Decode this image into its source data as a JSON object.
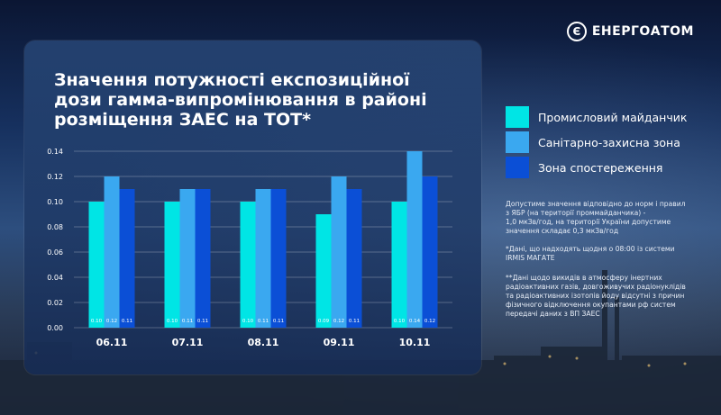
{
  "brand": {
    "logo_letter": "Є",
    "name": "ЕНЕРГОАТОМ"
  },
  "title_lines": [
    "Значення потужності експозиційної",
    "дози гамма-випромінювання в районі",
    "розміщення ЗАЕС на ТОТ*"
  ],
  "legend": [
    {
      "label": "Промисловий майданчик",
      "color": "#00e5e5"
    },
    {
      "label": "Санітарно-захисна зона",
      "color": "#3aa8f0"
    },
    {
      "label": "Зона спостереження",
      "color": "#0b4fd6"
    }
  ],
  "notes": {
    "n1": [
      "Допустиме значення відповідно до норм і правил",
      "з ЯБР (на території проммайданчика) -",
      "1,0 мкЗв/год, на території України допустиме",
      "значення складає 0,3 мкЗв/год"
    ],
    "n2": [
      "*Дані, що надходять щодня о 08:00 із системи",
      "IRMIS МАГАТЕ"
    ],
    "n3": [
      "**Дані щодо викидів в атмосферу інертних",
      "радіоактивних газів, довгоживучих радіонуклідів",
      "та радіоактивних ізотопів йоду відсутні з причин",
      "фізичного відключення окупантами рф систем",
      "передачі даних з ВП ЗАЕС"
    ]
  },
  "chart_data": {
    "type": "bar",
    "categories": [
      "06.11",
      "07.11",
      "08.11",
      "09.11",
      "10.11"
    ],
    "series": [
      {
        "name": "Промисловий майданчик",
        "values": [
          0.1,
          0.1,
          0.1,
          0.09,
          0.1
        ],
        "labels": [
          "0.10",
          "0.10",
          "0.10",
          "0.09",
          "0.10"
        ],
        "color": "#00e5e5"
      },
      {
        "name": "Санітарно-захисна зона",
        "values": [
          0.12,
          0.11,
          0.11,
          0.12,
          0.14
        ],
        "labels": [
          "0.12",
          "0.11",
          "0.11",
          "0.12",
          "0.14"
        ],
        "color": "#3aa8f0"
      },
      {
        "name": "Зона спостереження",
        "values": [
          0.11,
          0.11,
          0.11,
          0.11,
          0.12
        ],
        "labels": [
          "0.11",
          "0.11",
          "0.11",
          "0.11",
          "0.12"
        ],
        "color": "#0b4fd6"
      }
    ],
    "yticks": [
      "0.00",
      "0.02",
      "0.04",
      "0.06",
      "0.08",
      "0.10",
      "0.12",
      "0.14"
    ],
    "ylim": [
      0,
      0.14
    ],
    "grid": true,
    "legend": "right"
  }
}
